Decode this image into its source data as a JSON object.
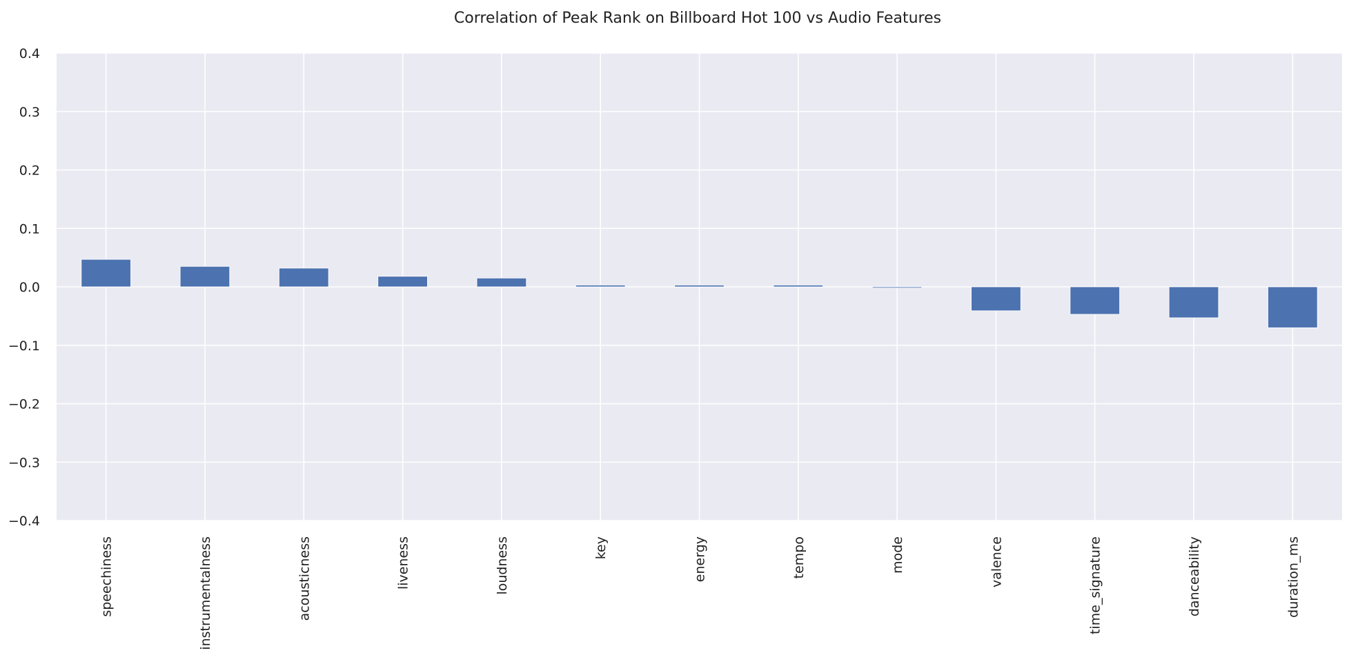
{
  "chart_data": {
    "type": "bar",
    "title": "Correlation of Peak Rank on Billboard Hot 100 vs Audio Features",
    "xlabel": "",
    "ylabel": "",
    "categories": [
      "speechiness",
      "instrumentalness",
      "acousticness",
      "liveness",
      "loudness",
      "key",
      "energy",
      "tempo",
      "mode",
      "valence",
      "time_signature",
      "danceability",
      "duration_ms"
    ],
    "values": [
      0.047,
      0.035,
      0.032,
      0.018,
      0.015,
      0.003,
      0.003,
      0.003,
      -0.002,
      -0.041,
      -0.047,
      -0.053,
      -0.07
    ],
    "ylim": [
      -0.4,
      0.4
    ],
    "yticks": [
      0.4,
      0.3,
      0.2,
      0.1,
      0.0,
      -0.1,
      -0.2,
      -0.3,
      -0.4
    ],
    "ytick_labels": [
      "0.4",
      "0.3",
      "0.2",
      "0.1",
      "0.0",
      "−0.1",
      "−0.2",
      "−0.3",
      "−0.4"
    ],
    "grid": true,
    "legend": "none",
    "colors": {
      "bar": "#4c72b0",
      "plot_background": "#eaeaf2",
      "grid": "#ffffff"
    }
  }
}
